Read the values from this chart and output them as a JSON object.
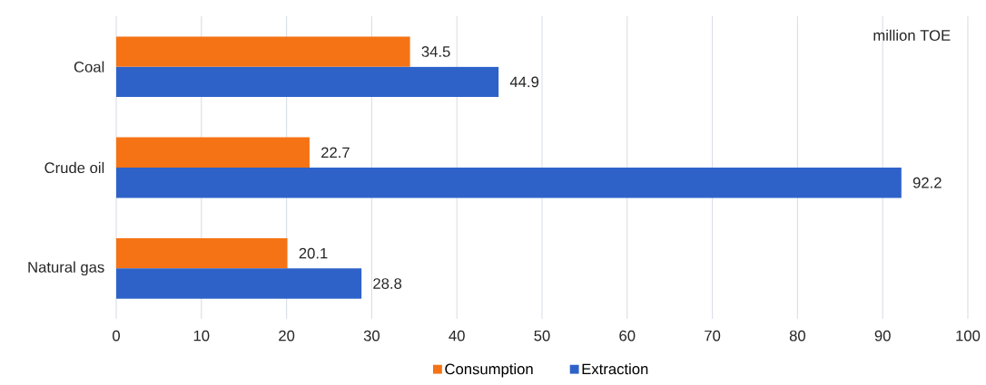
{
  "chart_data": {
    "type": "bar",
    "orientation": "horizontal",
    "categories": [
      "Coal",
      "Crude oil",
      "Natural gas"
    ],
    "series": [
      {
        "name": "Consumption",
        "color": "#f57314",
        "values": [
          34.5,
          22.7,
          20.1
        ]
      },
      {
        "name": "Extraction",
        "color": "#2e62c9",
        "values": [
          44.9,
          92.2,
          28.8
        ]
      }
    ],
    "xlim": [
      0,
      100
    ],
    "xticks": [
      0,
      10,
      20,
      30,
      40,
      50,
      60,
      70,
      80,
      90,
      100
    ],
    "grid": "x",
    "legend": "bottom",
    "data_labels": true,
    "annotations": [
      "million TOE"
    ]
  }
}
